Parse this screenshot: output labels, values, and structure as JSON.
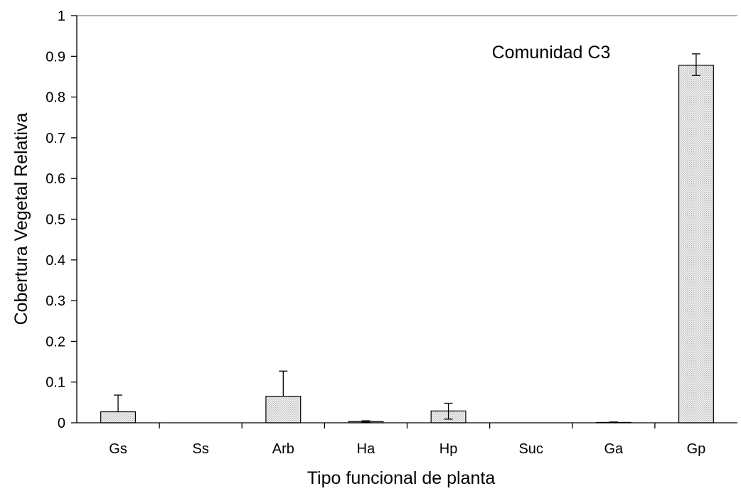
{
  "chart_data": {
    "type": "bar",
    "title": "",
    "annotation": "Comunidad C3",
    "xlabel": "Tipo funcional de planta",
    "ylabel": "Cobertura Vegetal Relativa",
    "categories": [
      "Gs",
      "Ss",
      "Arb",
      "Ha",
      "Hp",
      "Suc",
      "Ga",
      "Gp"
    ],
    "values": [
      0.027,
      0.0,
      0.065,
      0.003,
      0.029,
      0.0,
      0.001,
      0.878
    ],
    "error_upper": [
      0.041,
      0.0,
      0.062,
      0.002,
      0.019,
      0.0,
      0.001,
      0.028
    ],
    "error_lower": [
      0.0,
      0.0,
      0.0,
      0.002,
      0.02,
      0.0,
      0.0,
      0.025
    ],
    "ylim": [
      0,
      1
    ],
    "yticks": [
      "0",
      "0.1",
      "0.2",
      "0.3",
      "0.4",
      "0.5",
      "0.6",
      "0.7",
      "0.8",
      "0.9",
      "1"
    ],
    "ytick_values": [
      0,
      0.1,
      0.2,
      0.3,
      0.4,
      0.5,
      0.6,
      0.7,
      0.8,
      0.9,
      1
    ],
    "grid": false,
    "legend": "none",
    "bar_fill": "#d9d9d9",
    "bar_stroke": "#000000"
  }
}
